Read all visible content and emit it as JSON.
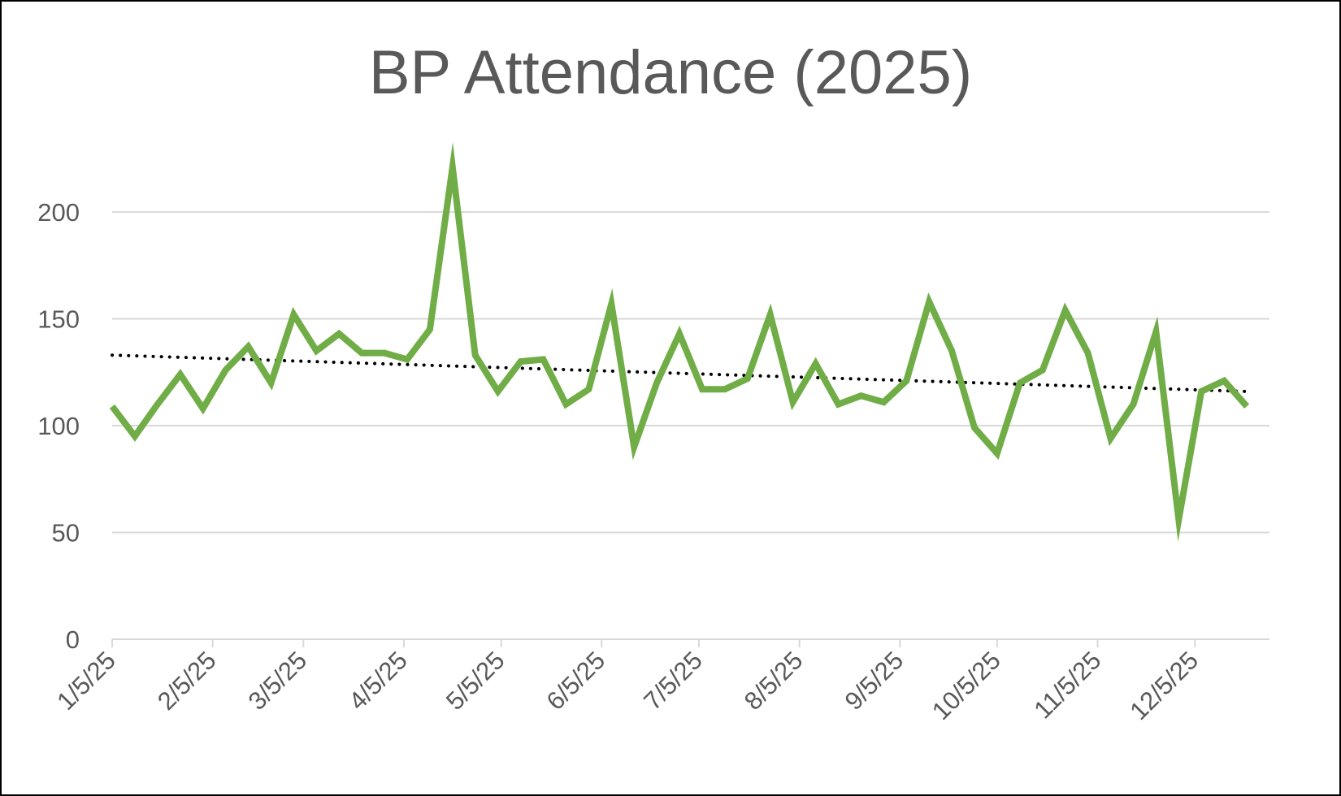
{
  "chart_data": {
    "type": "line",
    "title": "BP Attendance (2025)",
    "xlabel": "",
    "ylabel": "",
    "ylim": [
      0,
      225
    ],
    "yticks": [
      0,
      50,
      100,
      150,
      200
    ],
    "x_tick_labels": [
      "1/5/25",
      "2/5/25",
      "3/5/25",
      "4/5/25",
      "5/5/25",
      "6/5/25",
      "7/5/25",
      "8/5/25",
      "9/5/25",
      "10/5/25",
      "11/5/25",
      "12/5/25"
    ],
    "x_tick_dates": [
      "2025-01-05",
      "2025-02-05",
      "2025-03-05",
      "2025-04-05",
      "2025-05-05",
      "2025-06-05",
      "2025-07-05",
      "2025-08-05",
      "2025-09-05",
      "2025-10-05",
      "2025-11-05",
      "2025-12-05"
    ],
    "x_range": [
      "2025-01-05",
      "2025-12-28"
    ],
    "grid": true,
    "legend": "none",
    "series": [
      {
        "color": "#70AD47",
        "points": [
          [
            "2025-01-05",
            109
          ],
          [
            "2025-01-12",
            95
          ],
          [
            "2025-01-19",
            110
          ],
          [
            "2025-01-26",
            124
          ],
          [
            "2025-02-02",
            108
          ],
          [
            "2025-02-09",
            126
          ],
          [
            "2025-02-16",
            137
          ],
          [
            "2025-02-23",
            120
          ],
          [
            "2025-03-02",
            152
          ],
          [
            "2025-03-09",
            135
          ],
          [
            "2025-03-16",
            143
          ],
          [
            "2025-03-23",
            134
          ],
          [
            "2025-03-30",
            134
          ],
          [
            "2025-04-06",
            131
          ],
          [
            "2025-04-13",
            145
          ],
          [
            "2025-04-20",
            221
          ],
          [
            "2025-04-27",
            133
          ],
          [
            "2025-05-04",
            116
          ],
          [
            "2025-05-11",
            130
          ],
          [
            "2025-05-18",
            131
          ],
          [
            "2025-05-25",
            110
          ],
          [
            "2025-06-01",
            117
          ],
          [
            "2025-06-08",
            157
          ],
          [
            "2025-06-15",
            90
          ],
          [
            "2025-06-22",
            120
          ],
          [
            "2025-06-29",
            143
          ],
          [
            "2025-07-06",
            117
          ],
          [
            "2025-07-13",
            117
          ],
          [
            "2025-07-20",
            122
          ],
          [
            "2025-07-27",
            152
          ],
          [
            "2025-08-03",
            111
          ],
          [
            "2025-08-10",
            129
          ],
          [
            "2025-08-17",
            110
          ],
          [
            "2025-08-24",
            114
          ],
          [
            "2025-08-31",
            111
          ],
          [
            "2025-09-07",
            121
          ],
          [
            "2025-09-14",
            158
          ],
          [
            "2025-09-21",
            135
          ],
          [
            "2025-09-28",
            99
          ],
          [
            "2025-10-05",
            87
          ],
          [
            "2025-10-12",
            120
          ],
          [
            "2025-10-19",
            126
          ],
          [
            "2025-10-26",
            154
          ],
          [
            "2025-11-02",
            134
          ],
          [
            "2025-11-09",
            94
          ],
          [
            "2025-11-16",
            110
          ],
          [
            "2025-11-23",
            144
          ],
          [
            "2025-11-30",
            56
          ],
          [
            "2025-12-07",
            116
          ],
          [
            "2025-12-14",
            121
          ],
          [
            "2025-12-21",
            109
          ]
        ]
      }
    ],
    "trendline": {
      "type": "linear",
      "color": "#000000",
      "style": "dotted",
      "start": [
        "2025-01-05",
        133
      ],
      "end": [
        "2025-12-21",
        116
      ]
    },
    "colors": {
      "line": "#70AD47",
      "grid": "#D9D9D9",
      "axis": "#D9D9D9",
      "text": "#595959",
      "border": "#000000"
    }
  }
}
